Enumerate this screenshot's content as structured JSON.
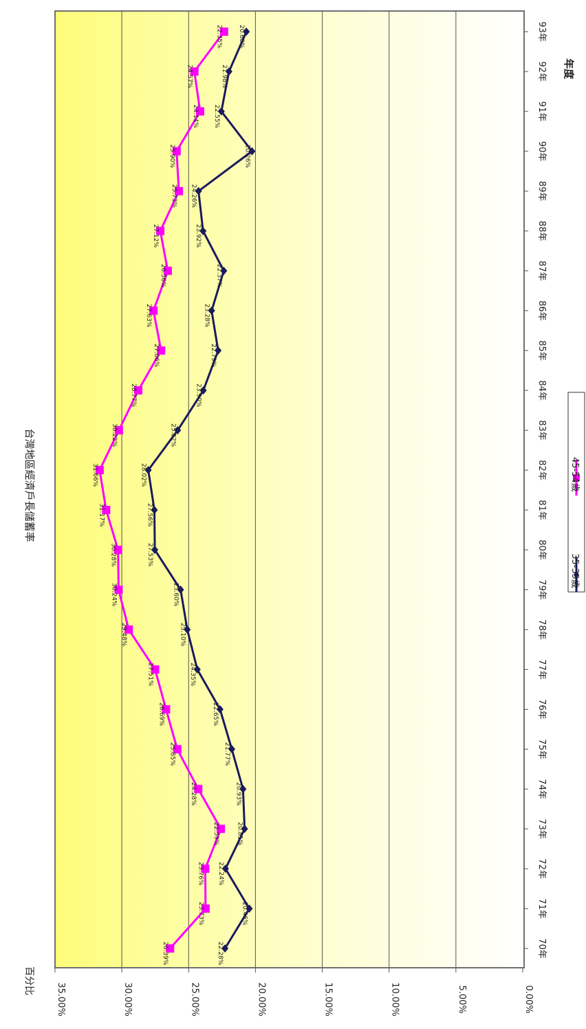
{
  "chart_data": {
    "type": "line",
    "title": "台灣地區經濟戶長儲蓄率",
    "ylabel": "百分比",
    "xlabel": "年度",
    "categories": [
      "70年",
      "71年",
      "72年",
      "73年",
      "74年",
      "75年",
      "76年",
      "77年",
      "78年",
      "79年",
      "80年",
      "81年",
      "82年",
      "83年",
      "84年",
      "85年",
      "86年",
      "87年",
      "88年",
      "89年",
      "90年",
      "91年",
      "92年",
      "93年"
    ],
    "ylim": [
      0,
      35
    ],
    "y_ticks": [
      0,
      5,
      10,
      15,
      20,
      25,
      30,
      35
    ],
    "y_tick_labels": [
      "0.00%",
      "5.00%",
      "10.00%",
      "15.00%",
      "20.00%",
      "25.00%",
      "30.00%",
      "35.00%"
    ],
    "grid": true,
    "legend_position": "bottom",
    "series": [
      {
        "name": "35-39歲",
        "color": "#1a1a5e",
        "marker": "diamond",
        "values": [
          22.28,
          20.46,
          22.24,
          20.81,
          20.93,
          21.77,
          22.65,
          24.35,
          25.1,
          25.6,
          27.53,
          27.56,
          28.02,
          25.82,
          23.9,
          22.79,
          23.28,
          22.37,
          23.92,
          24.26,
          20.26,
          22.55,
          21.98,
          20.68
        ],
        "labels": [
          "22.28%",
          "20.46%",
          "22.24%",
          "20.81%",
          "20.93%",
          "21.77%",
          "22.65%",
          "24.35%",
          "25.10%",
          "25.60%",
          "27.53%",
          "27.56%",
          "28.02%",
          "25.82%",
          "23.90%",
          "22.79%",
          "23.28%",
          "22.37%",
          "23.92%",
          "24.26%",
          "20.26%",
          "22.55%",
          "21.98%",
          "20.68%"
        ]
      },
      {
        "name": "45-54歲",
        "color": "#ff00ff",
        "marker": "square",
        "values": [
          26.39,
          23.73,
          23.76,
          22.59,
          24.28,
          25.85,
          26.69,
          27.51,
          29.48,
          30.24,
          30.28,
          31.17,
          31.66,
          30.22,
          28.77,
          27.06,
          27.63,
          26.56,
          27.12,
          25.73,
          25.9,
          24.14,
          24.57,
          22.35
        ],
        "labels": [
          "26.39%",
          "23.73%",
          "23.76%",
          "22.59%",
          "24.28%",
          "25.85%",
          "26.69%",
          "27.51%",
          "29.48%",
          "30.24%",
          "30.28%",
          "31.17%",
          "31.66%",
          "30.22%",
          "28.77%",
          "27.06%",
          "27.63%",
          "26.56%",
          "27.12%",
          "25.73%",
          "25.90%",
          "24.14%",
          "24.57%",
          "22.35%"
        ]
      }
    ]
  }
}
